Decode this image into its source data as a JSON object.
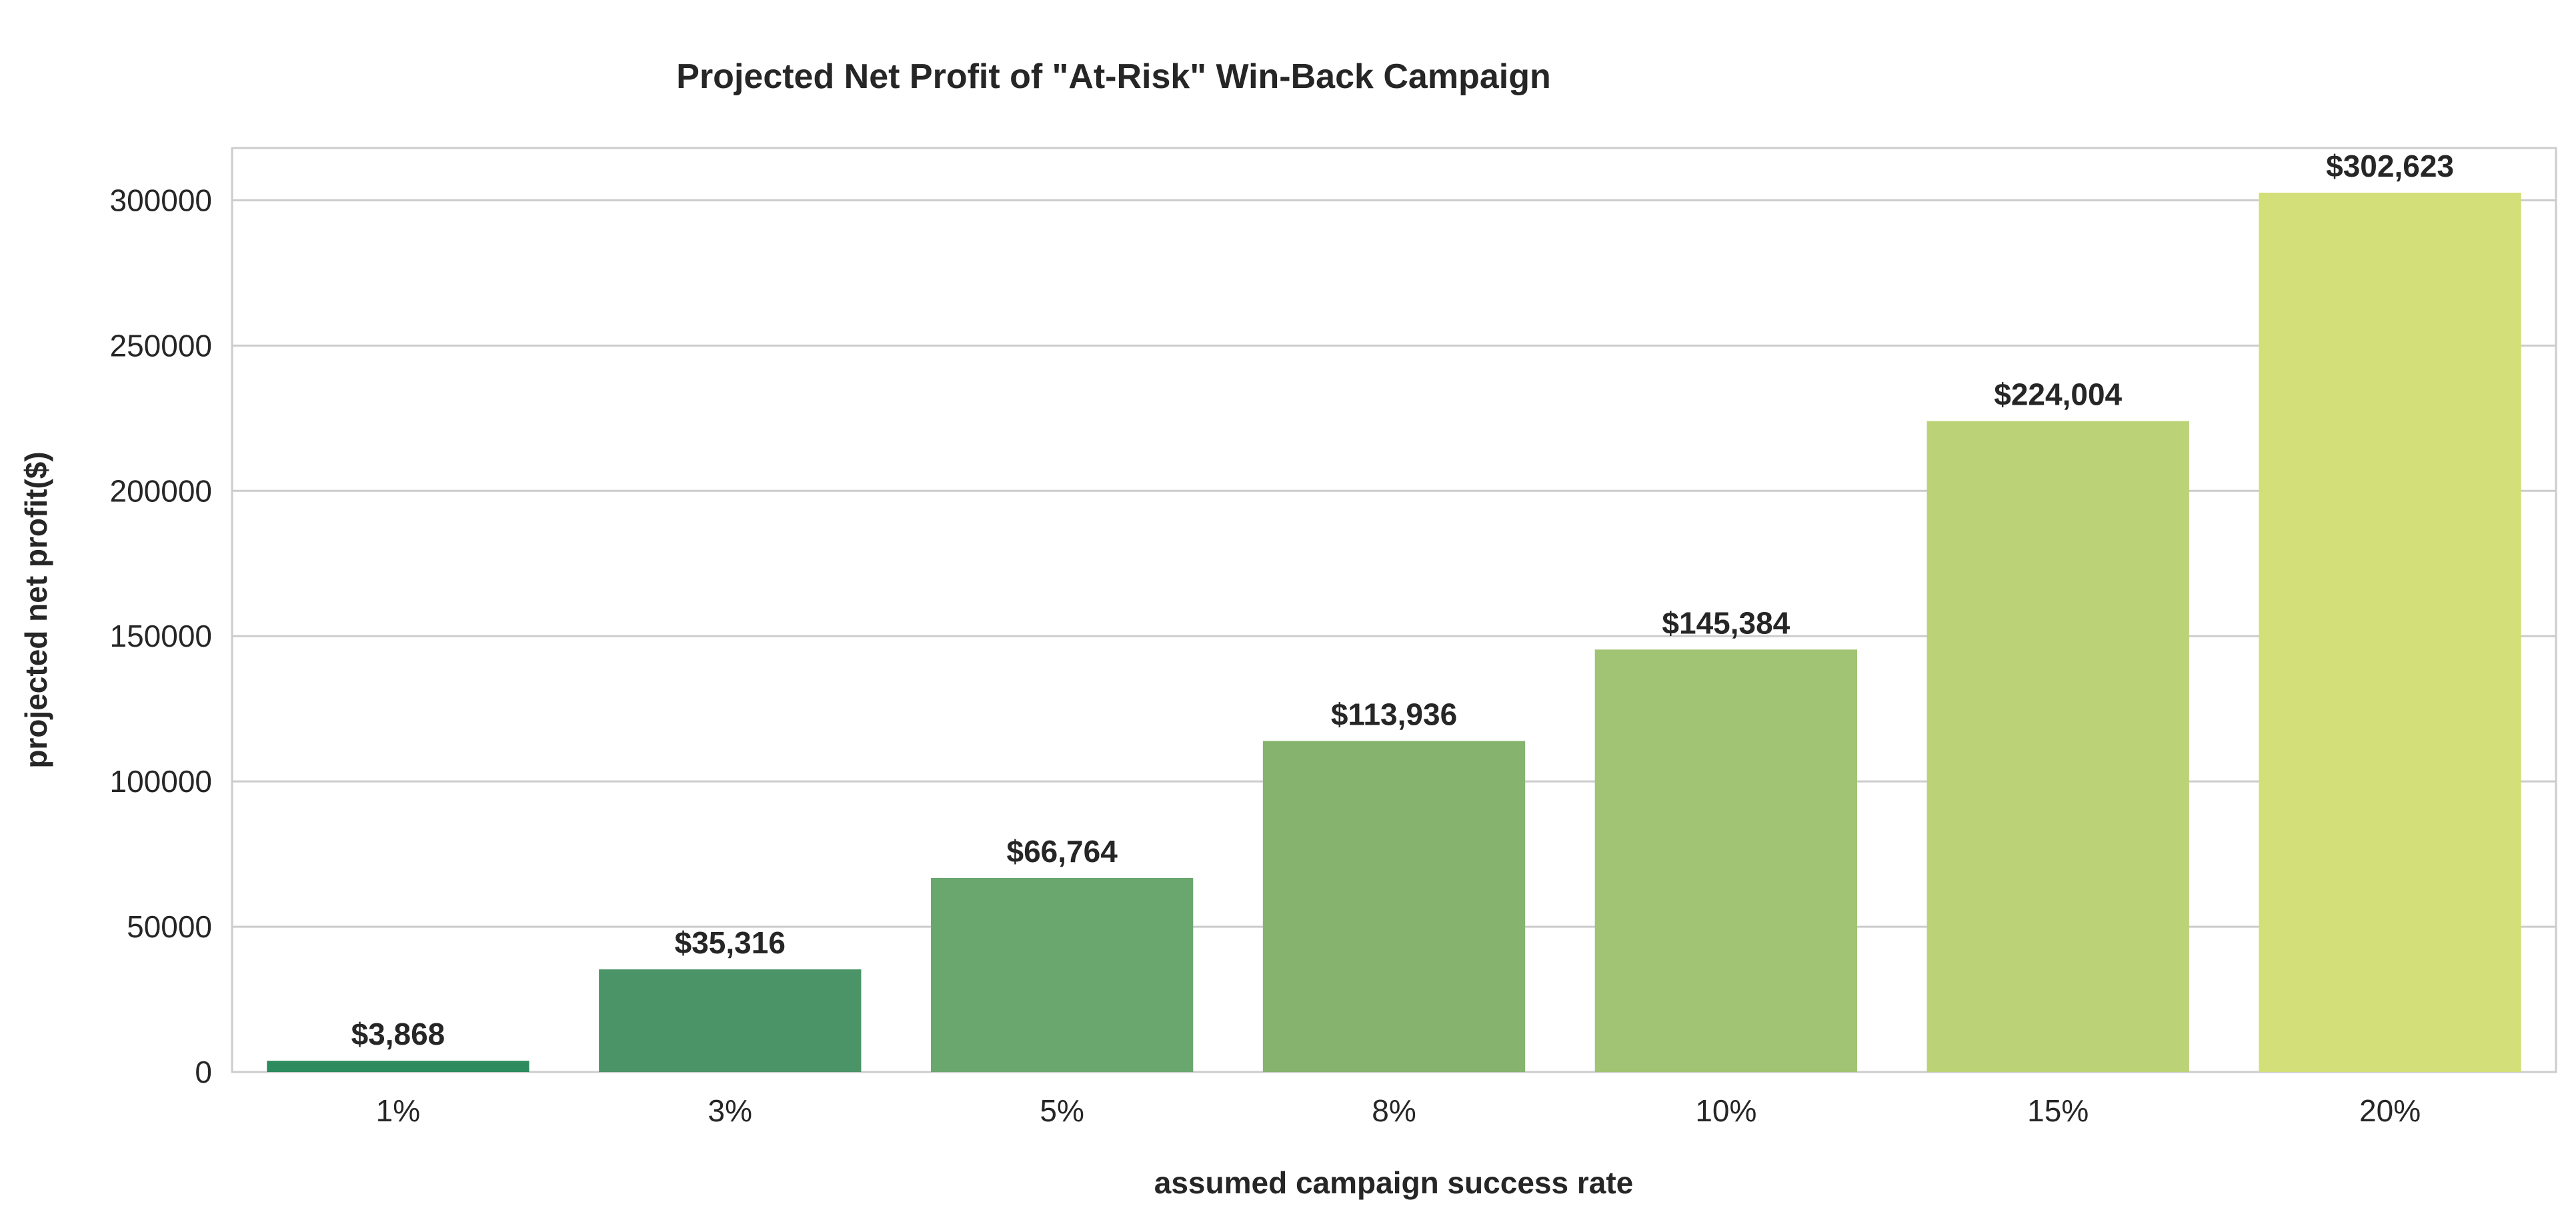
{
  "chart_data": {
    "type": "bar",
    "title": "Projected Net Profit of \"At-Risk\" Win-Back Campaign",
    "xlabel": "assumed campaign success rate",
    "ylabel": "projected net profit($)",
    "categories": [
      "1%",
      "3%",
      "5%",
      "8%",
      "10%",
      "15%",
      "20%"
    ],
    "values": [
      3868,
      35316,
      66764,
      113936,
      145384,
      224004,
      302623
    ],
    "data_labels": [
      "$3,868",
      "$35,316",
      "$66,764",
      "$113,936",
      "$145,384",
      "$224,004",
      "$302,623"
    ],
    "yticks": [
      0,
      50000,
      100000,
      150000,
      200000,
      250000,
      300000
    ],
    "ylim": [
      0,
      318000
    ],
    "grid": "horizontal",
    "colors": [
      "#2e8b5e",
      "#4b9467",
      "#6aa76e",
      "#86b46f",
      "#a0c473",
      "#bcd276",
      "#d3df78"
    ]
  }
}
